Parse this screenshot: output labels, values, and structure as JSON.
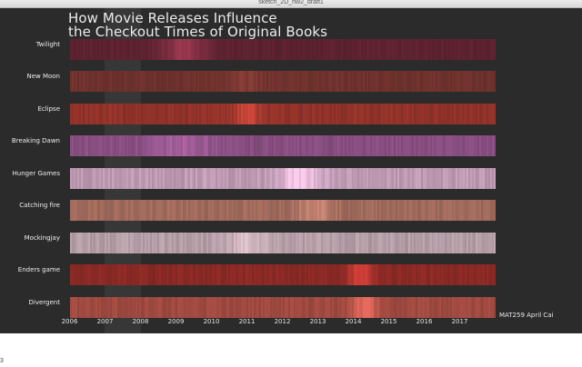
{
  "window": {
    "title": "sketch_2D_hw2_draft1"
  },
  "chart_data": {
    "type": "heatmap",
    "title_lines": [
      "How Movie Releases Influence",
      "the Checkout Times of Original Books"
    ],
    "x_tick_labels": [
      "2006",
      "2007",
      "2008",
      "2009",
      "2010",
      "2011",
      "2012",
      "2013",
      "2014",
      "2015",
      "2016",
      "2017"
    ],
    "xlim": [
      2006,
      2018
    ],
    "series": [
      {
        "name": "Twilight",
        "color": "#7e2e40",
        "baseline": 0.35,
        "peaks": [
          [
            2009.2,
            0.9,
            0.6
          ]
        ]
      },
      {
        "name": "New Moon",
        "color": "#8a3e38",
        "baseline": 0.42,
        "peaks": [
          [
            2010.9,
            0.6,
            0.5
          ]
        ]
      },
      {
        "name": "Eclipse",
        "color": "#a83a30",
        "baseline": 0.5,
        "peaks": [
          [
            2011.0,
            0.95,
            0.35
          ]
        ]
      },
      {
        "name": "Breaking Dawn",
        "color": "#9c5a94",
        "baseline": 0.5,
        "peaks": [
          [
            2009.2,
            0.75,
            0.8
          ]
        ]
      },
      {
        "name": "Hunger Games",
        "color": "#c9a3bd",
        "baseline": 0.6,
        "peaks": [
          [
            2012.5,
            1.0,
            0.6
          ]
        ]
      },
      {
        "name": "Catching fire",
        "color": "#b07566",
        "baseline": 0.55,
        "peaks": [
          [
            2012.9,
            0.85,
            0.5
          ]
        ]
      },
      {
        "name": "Mockingjay",
        "color": "#bfa7b0",
        "baseline": 0.6,
        "peaks": [
          [
            2011.0,
            0.8,
            0.5
          ]
        ]
      },
      {
        "name": "Enders game",
        "color": "#a8322c",
        "baseline": 0.45,
        "peaks": [
          [
            2014.2,
            1.0,
            0.35
          ]
        ]
      },
      {
        "name": "Divergent",
        "color": "#b8554a",
        "baseline": 0.5,
        "peaks": [
          [
            2014.3,
            1.0,
            0.35
          ]
        ]
      }
    ]
  },
  "credit": "MAT259 April Cai",
  "stray_text": "3"
}
